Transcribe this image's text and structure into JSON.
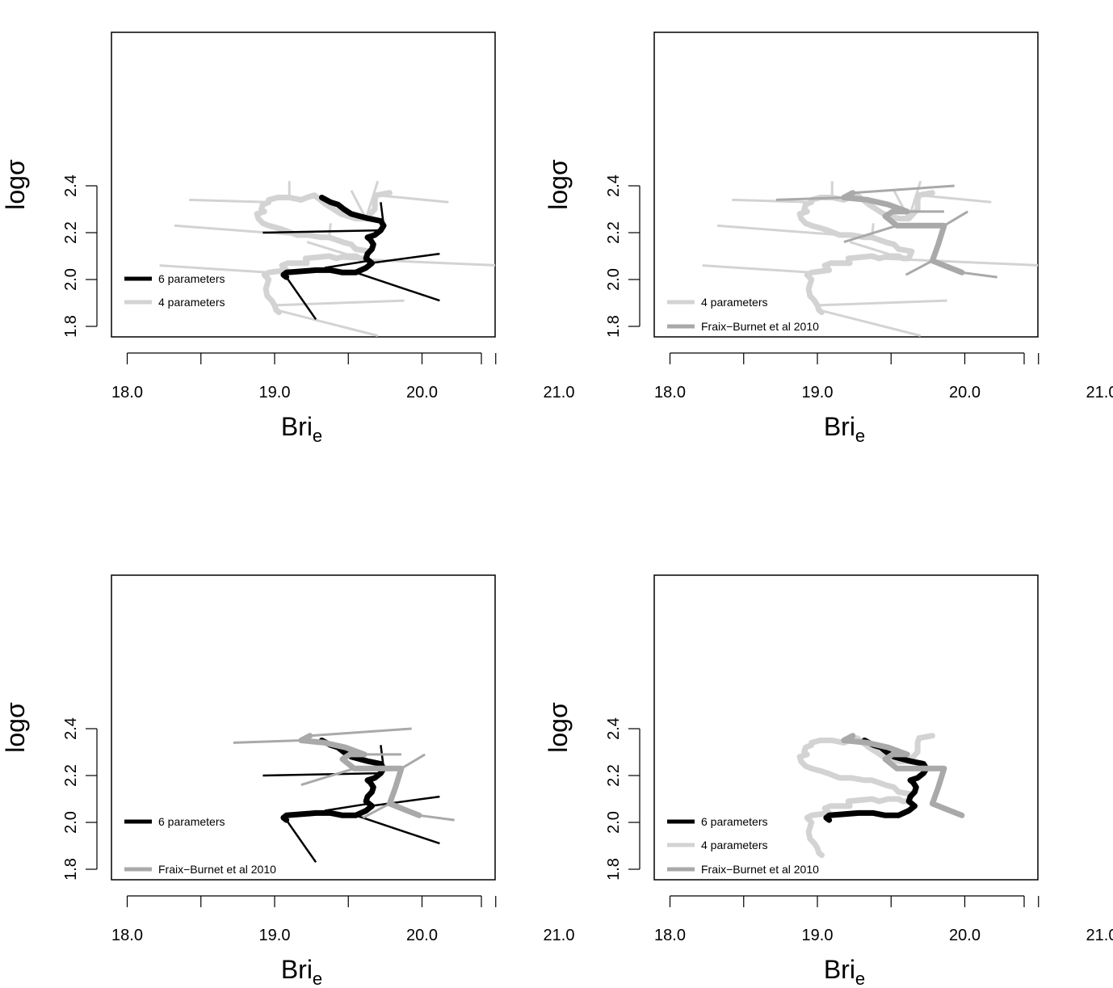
{
  "axes": {
    "xlabel": "Bri",
    "xlabel_sub": "e",
    "ylabel": "logσ",
    "x_tick_labels": [
      "18.0",
      "19.0",
      "20.0",
      "21.0"
    ],
    "y_tick_labels": [
      "1.8",
      "2.0",
      "2.2",
      "2.4"
    ]
  },
  "series_styles": {
    "six": {
      "color": "#000000"
    },
    "four": {
      "color": "#d3d3d3"
    },
    "fraix": {
      "color": "#a9a9a9"
    }
  },
  "legend_labels": {
    "six": "6 parameters",
    "four": "4 parameters",
    "fraix": "Fraix−Burnet et al 2010"
  },
  "chart_data": [
    {
      "type": "line",
      "panel": "top-left",
      "xlim": [
        17.9,
        21.0
      ],
      "ylim": [
        1.8,
        2.4
      ],
      "x_ticks": [
        18.0,
        18.5,
        19.0,
        19.5,
        20.0,
        20.5,
        21.0
      ],
      "y_ticks": [
        1.8,
        2.0,
        2.2,
        2.4
      ],
      "legend": [
        "six",
        "four"
      ],
      "series": [
        "six",
        "four"
      ]
    },
    {
      "type": "line",
      "panel": "top-right",
      "xlim": [
        17.9,
        21.0
      ],
      "ylim": [
        1.8,
        2.4
      ],
      "x_ticks": [
        18.0,
        18.5,
        19.0,
        19.5,
        20.0,
        20.5,
        21.0
      ],
      "y_ticks": [
        1.8,
        2.0,
        2.2,
        2.4
      ],
      "legend": [
        "four",
        "fraix"
      ],
      "series": [
        "four",
        "fraix"
      ]
    },
    {
      "type": "line",
      "panel": "bottom-left",
      "xlim": [
        17.9,
        21.0
      ],
      "ylim": [
        1.8,
        2.4
      ],
      "x_ticks": [
        18.0,
        18.5,
        19.0,
        19.5,
        20.0,
        20.5,
        21.0
      ],
      "y_ticks": [
        1.8,
        2.0,
        2.2,
        2.4
      ],
      "legend": [
        "six",
        "blank",
        "fraix"
      ],
      "series": [
        "six",
        "fraix"
      ]
    },
    {
      "type": "line",
      "panel": "bottom-right",
      "xlim": [
        17.9,
        21.0
      ],
      "ylim": [
        1.8,
        2.4
      ],
      "x_ticks": [
        18.0,
        18.5,
        19.0,
        19.5,
        20.0,
        20.5,
        21.0
      ],
      "y_ticks": [
        1.8,
        2.0,
        2.2,
        2.4
      ],
      "legend": [
        "six",
        "four",
        "fraix"
      ],
      "series": [
        "six",
        "four",
        "fraix"
      ],
      "no_whiskers": true
    }
  ],
  "series_data": {
    "six": {
      "path": [
        [
          19.08,
          2.01
        ],
        [
          19.06,
          2.02
        ],
        [
          19.08,
          2.03
        ],
        [
          19.28,
          2.04
        ],
        [
          19.38,
          2.04
        ],
        [
          19.46,
          2.03
        ],
        [
          19.55,
          2.03
        ],
        [
          19.62,
          2.05
        ],
        [
          19.66,
          2.07
        ],
        [
          19.64,
          2.08
        ],
        [
          19.62,
          2.09
        ],
        [
          19.63,
          2.11
        ],
        [
          19.66,
          2.13
        ],
        [
          19.67,
          2.15
        ],
        [
          19.65,
          2.17
        ],
        [
          19.63,
          2.18
        ],
        [
          19.68,
          2.19
        ],
        [
          19.72,
          2.21
        ],
        [
          19.74,
          2.23
        ],
        [
          19.72,
          2.25
        ],
        [
          19.64,
          2.26
        ],
        [
          19.58,
          2.27
        ],
        [
          19.52,
          2.28
        ],
        [
          19.47,
          2.3
        ],
        [
          19.43,
          2.32
        ],
        [
          19.38,
          2.33
        ],
        [
          19.32,
          2.35
        ]
      ],
      "whiskers": [
        [
          [
            19.08,
            2.01
          ],
          [
            19.28,
            1.83
          ]
        ],
        [
          [
            19.55,
            2.03
          ],
          [
            20.12,
            1.91
          ]
        ],
        [
          [
            19.65,
            2.07
          ],
          [
            20.12,
            2.11
          ]
        ],
        [
          [
            19.64,
            2.08
          ],
          [
            19.34,
            2.05
          ]
        ],
        [
          [
            19.72,
            2.21
          ],
          [
            18.92,
            2.2
          ]
        ],
        [
          [
            19.74,
            2.23
          ],
          [
            19.72,
            2.33
          ]
        ]
      ]
    },
    "four": {
      "path": [
        [
          19.03,
          1.86
        ],
        [
          19.01,
          1.87
        ],
        [
          19.0,
          1.89
        ],
        [
          18.98,
          1.91
        ],
        [
          18.95,
          1.93
        ],
        [
          18.94,
          1.96
        ],
        [
          18.95,
          1.98
        ],
        [
          18.96,
          2.0
        ],
        [
          18.93,
          2.02
        ],
        [
          18.96,
          2.03
        ],
        [
          19.08,
          2.04
        ],
        [
          19.05,
          2.06
        ],
        [
          19.09,
          2.07
        ],
        [
          19.22,
          2.07
        ],
        [
          19.21,
          2.09
        ],
        [
          19.37,
          2.1
        ],
        [
          19.42,
          2.09
        ],
        [
          19.48,
          2.1
        ],
        [
          19.55,
          2.1
        ],
        [
          19.58,
          2.09
        ],
        [
          19.62,
          2.09
        ],
        [
          19.64,
          2.12
        ],
        [
          19.55,
          2.13
        ],
        [
          19.52,
          2.15
        ],
        [
          19.46,
          2.16
        ],
        [
          19.37,
          2.18
        ],
        [
          19.32,
          2.18
        ],
        [
          19.23,
          2.19
        ],
        [
          19.15,
          2.19
        ],
        [
          19.07,
          2.21
        ],
        [
          19.02,
          2.22
        ],
        [
          18.96,
          2.23
        ],
        [
          18.92,
          2.24
        ],
        [
          18.89,
          2.26
        ],
        [
          18.88,
          2.28
        ],
        [
          18.93,
          2.29
        ],
        [
          18.91,
          2.3
        ],
        [
          18.92,
          2.32
        ],
        [
          18.96,
          2.33
        ],
        [
          18.96,
          2.34
        ],
        [
          19.02,
          2.35
        ],
        [
          19.1,
          2.35
        ],
        [
          19.18,
          2.34
        ],
        [
          19.22,
          2.35
        ],
        [
          19.27,
          2.36
        ],
        [
          19.35,
          2.32
        ],
        [
          19.45,
          2.28
        ],
        [
          19.55,
          2.26
        ],
        [
          19.62,
          2.26
        ],
        [
          19.68,
          2.3
        ],
        [
          19.68,
          2.34
        ],
        [
          19.69,
          2.36
        ],
        [
          19.78,
          2.37
        ]
      ],
      "whiskers": [
        [
          [
            19.01,
            1.87
          ],
          [
            19.7,
            1.76
          ]
        ],
        [
          [
            19.0,
            1.89
          ],
          [
            19.88,
            1.91
          ]
        ],
        [
          [
            18.96,
            2.03
          ],
          [
            18.22,
            2.06
          ]
        ],
        [
          [
            19.42,
            2.09
          ],
          [
            20.52,
            2.06
          ]
        ],
        [
          [
            19.58,
            2.09
          ],
          [
            19.22,
            2.16
          ]
        ],
        [
          [
            19.37,
            2.18
          ],
          [
            18.32,
            2.23
          ]
        ],
        [
          [
            19.37,
            2.18
          ],
          [
            19.38,
            2.24
          ]
        ],
        [
          [
            18.96,
            2.33
          ],
          [
            18.42,
            2.34
          ]
        ],
        [
          [
            19.1,
            2.35
          ],
          [
            19.1,
            2.42
          ]
        ],
        [
          [
            19.62,
            2.26
          ],
          [
            19.52,
            2.38
          ]
        ],
        [
          [
            19.62,
            2.26
          ],
          [
            19.7,
            2.42
          ]
        ],
        [
          [
            19.69,
            2.36
          ],
          [
            20.18,
            2.33
          ]
        ]
      ]
    },
    "fraix": {
      "path": [
        [
          19.98,
          2.03
        ],
        [
          19.86,
          2.06
        ],
        [
          19.78,
          2.08
        ],
        [
          19.82,
          2.15
        ],
        [
          19.86,
          2.23
        ],
        [
          19.54,
          2.23
        ],
        [
          19.46,
          2.27
        ],
        [
          19.51,
          2.29
        ],
        [
          19.61,
          2.29
        ],
        [
          19.48,
          2.32
        ],
        [
          19.34,
          2.34
        ],
        [
          19.18,
          2.35
        ],
        [
          19.24,
          2.37
        ]
      ],
      "whiskers": [
        [
          [
            19.98,
            2.03
          ],
          [
            20.22,
            2.01
          ]
        ],
        [
          [
            19.78,
            2.08
          ],
          [
            19.6,
            2.02
          ]
        ],
        [
          [
            19.86,
            2.23
          ],
          [
            20.02,
            2.29
          ]
        ],
        [
          [
            19.54,
            2.23
          ],
          [
            19.18,
            2.16
          ]
        ],
        [
          [
            19.61,
            2.29
          ],
          [
            19.86,
            2.29
          ]
        ],
        [
          [
            19.18,
            2.35
          ],
          [
            18.72,
            2.34
          ]
        ],
        [
          [
            19.24,
            2.37
          ],
          [
            19.93,
            2.4
          ]
        ]
      ]
    }
  }
}
